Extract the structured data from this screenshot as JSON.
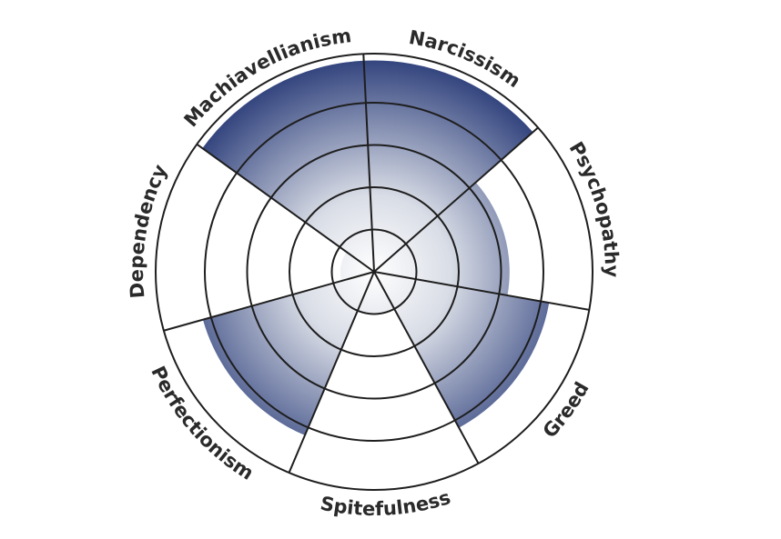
{
  "chart_data": {
    "type": "radial-bar",
    "title": "",
    "max_level": 5,
    "rings": 5,
    "categories": [
      "Narcissism",
      "Psychopathy",
      "Greed",
      "Spitefulness",
      "Perfectionism",
      "Dependency",
      "Machiavellianism"
    ],
    "values": [
      5,
      3.2,
      4.2,
      1,
      4.2,
      0.8,
      5
    ],
    "colors": {
      "fill_outer": "#2c3e7a",
      "fill_center": "#ffffff",
      "stroke": "#1e1e1e"
    }
  }
}
